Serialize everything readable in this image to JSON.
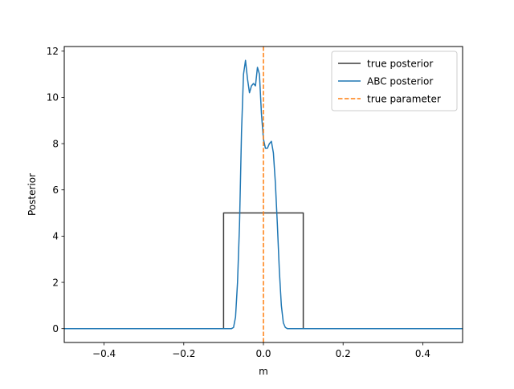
{
  "chart_data": {
    "type": "line",
    "title": "",
    "xlabel": "m",
    "ylabel": "Posterior",
    "xlim": [
      -0.5,
      0.5
    ],
    "ylim": [
      -0.6,
      12.2
    ],
    "xticks": [
      -0.4,
      -0.2,
      0.0,
      0.2,
      0.4
    ],
    "xtick_labels": [
      "−0.4",
      "−0.2",
      "0.0",
      "0.2",
      "0.4"
    ],
    "yticks": [
      0,
      2,
      4,
      6,
      8,
      10,
      12
    ],
    "ytick_labels": [
      "0",
      "2",
      "4",
      "6",
      "8",
      "10",
      "12"
    ],
    "grid": false,
    "legend_position": "top-right",
    "series": [
      {
        "name": "true posterior",
        "color": "#3b3b3b",
        "style": "solid",
        "x": [
          -0.5,
          -0.1,
          -0.1,
          0.1,
          0.1,
          0.5
        ],
        "y": [
          0,
          0,
          5,
          5,
          0,
          0
        ]
      },
      {
        "name": "ABC posterior",
        "color": "#1f77b4",
        "style": "solid",
        "x": [
          -0.5,
          -0.08,
          -0.075,
          -0.07,
          -0.065,
          -0.06,
          -0.055,
          -0.05,
          -0.045,
          -0.04,
          -0.035,
          -0.03,
          -0.025,
          -0.02,
          -0.015,
          -0.01,
          -0.005,
          0.0,
          0.005,
          0.01,
          0.015,
          0.02,
          0.025,
          0.03,
          0.035,
          0.04,
          0.045,
          0.05,
          0.055,
          0.06,
          0.065,
          0.07,
          0.075,
          0.5
        ],
        "y": [
          0,
          0,
          0.05,
          0.5,
          2.0,
          4.5,
          8.5,
          11.0,
          11.6,
          10.8,
          10.2,
          10.5,
          10.6,
          10.5,
          11.3,
          11.0,
          9.3,
          8.2,
          7.8,
          7.8,
          8.0,
          8.1,
          7.6,
          6.3,
          4.5,
          2.5,
          1.0,
          0.25,
          0.05,
          0,
          0,
          0,
          0,
          0
        ]
      },
      {
        "name": "true parameter",
        "color": "#ff7f0e",
        "style": "dashed",
        "vline_x": 0.0
      }
    ]
  }
}
